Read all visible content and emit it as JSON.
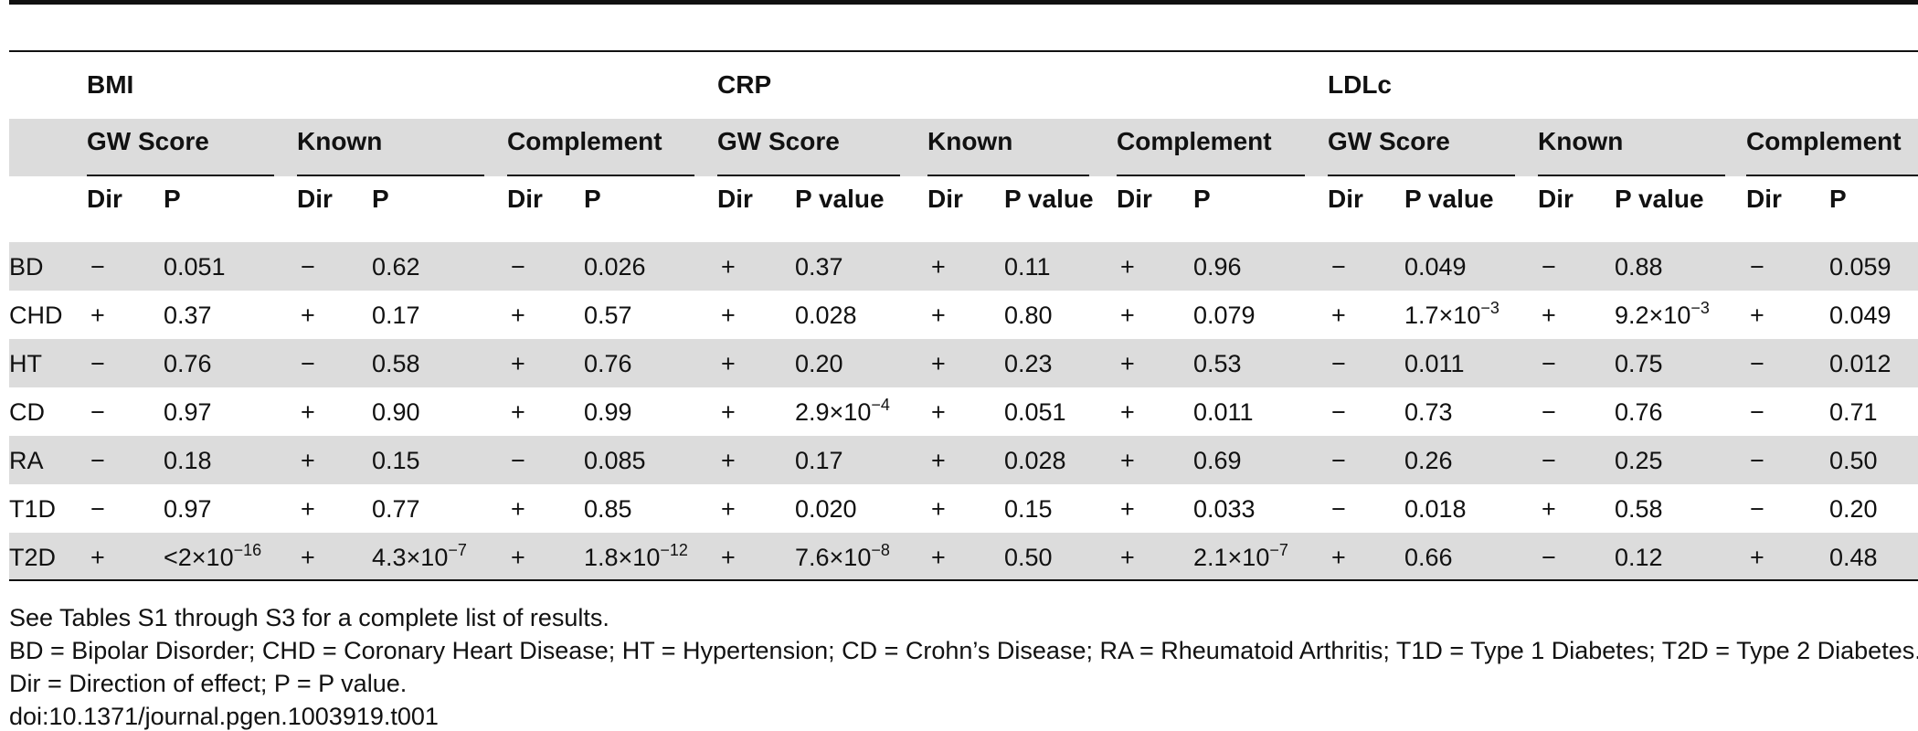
{
  "groups": [
    {
      "label": "BMI",
      "subgroups": [
        {
          "label": "GW Score",
          "cols": [
            "Dir",
            "P"
          ]
        },
        {
          "label": "Known",
          "cols": [
            "Dir",
            "P"
          ]
        },
        {
          "label": "Complement",
          "cols": [
            "Dir",
            "P"
          ]
        }
      ]
    },
    {
      "label": "CRP",
      "subgroups": [
        {
          "label": "GW Score",
          "cols": [
            "Dir",
            "P value"
          ]
        },
        {
          "label": "Known",
          "cols": [
            "Dir",
            "P value"
          ]
        },
        {
          "label": "Complement",
          "cols": [
            "Dir",
            "P"
          ]
        }
      ]
    },
    {
      "label": "LDLc",
      "subgroups": [
        {
          "label": "GW Score",
          "cols": [
            "Dir",
            "P value"
          ]
        },
        {
          "label": "Known",
          "cols": [
            "Dir",
            "P value"
          ]
        },
        {
          "label": "Complement",
          "cols": [
            "Dir",
            "P"
          ]
        }
      ]
    }
  ],
  "rows": [
    {
      "label": "BD",
      "cells": [
        [
          "−",
          "0.051"
        ],
        [
          "−",
          "0.62"
        ],
        [
          "−",
          "0.026"
        ],
        [
          "+",
          "0.37"
        ],
        [
          "+",
          "0.11"
        ],
        [
          "+",
          "0.96"
        ],
        [
          "−",
          "0.049"
        ],
        [
          "−",
          "0.88"
        ],
        [
          "−",
          "0.059"
        ]
      ]
    },
    {
      "label": "CHD",
      "cells": [
        [
          "+",
          "0.37"
        ],
        [
          "+",
          "0.17"
        ],
        [
          "+",
          "0.57"
        ],
        [
          "+",
          "0.028"
        ],
        [
          "+",
          "0.80"
        ],
        [
          "+",
          "0.079"
        ],
        [
          "+",
          "1.7×10",
          "−3"
        ],
        [
          "+",
          "9.2×10",
          "−3"
        ],
        [
          "+",
          "0.049"
        ]
      ]
    },
    {
      "label": "HT",
      "cells": [
        [
          "−",
          "0.76"
        ],
        [
          "−",
          "0.58"
        ],
        [
          "+",
          "0.76"
        ],
        [
          "+",
          "0.20"
        ],
        [
          "+",
          "0.23"
        ],
        [
          "+",
          "0.53"
        ],
        [
          "−",
          "0.011"
        ],
        [
          "−",
          "0.75"
        ],
        [
          "−",
          "0.012"
        ]
      ]
    },
    {
      "label": "CD",
      "cells": [
        [
          "−",
          "0.97"
        ],
        [
          "+",
          "0.90"
        ],
        [
          "+",
          "0.99"
        ],
        [
          "+",
          "2.9×10",
          "−4"
        ],
        [
          "+",
          "0.051"
        ],
        [
          "+",
          "0.011"
        ],
        [
          "−",
          "0.73"
        ],
        [
          "−",
          "0.76"
        ],
        [
          "−",
          "0.71"
        ]
      ]
    },
    {
      "label": "RA",
      "cells": [
        [
          "−",
          "0.18"
        ],
        [
          "+",
          "0.15"
        ],
        [
          "−",
          "0.085"
        ],
        [
          "+",
          "0.17"
        ],
        [
          "+",
          "0.028"
        ],
        [
          "+",
          "0.69"
        ],
        [
          "−",
          "0.26"
        ],
        [
          "−",
          "0.25"
        ],
        [
          "−",
          "0.50"
        ]
      ]
    },
    {
      "label": "T1D",
      "cells": [
        [
          "−",
          "0.97"
        ],
        [
          "+",
          "0.77"
        ],
        [
          "+",
          "0.85"
        ],
        [
          "+",
          "0.020"
        ],
        [
          "+",
          "0.15"
        ],
        [
          "+",
          "0.033"
        ],
        [
          "−",
          "0.018"
        ],
        [
          "+",
          "0.58"
        ],
        [
          "−",
          "0.20"
        ]
      ]
    },
    {
      "label": "T2D",
      "cells": [
        [
          "+",
          "<2×10",
          "−16"
        ],
        [
          "+",
          "4.3×10",
          "−7"
        ],
        [
          "+",
          "1.8×10",
          "−12"
        ],
        [
          "+",
          "7.6×10",
          "−8"
        ],
        [
          "+",
          "0.50"
        ],
        [
          "+",
          "2.1×10",
          "−7"
        ],
        [
          "+",
          "0.66"
        ],
        [
          "−",
          "0.12"
        ],
        [
          "+",
          "0.48"
        ]
      ]
    }
  ],
  "footnotes": [
    "See Tables S1 through S3 for a complete list of results.",
    "BD = Bipolar Disorder; CHD = Coronary Heart Disease; HT = Hypertension; CD = Crohn’s Disease; RA = Rheumatoid Arthritis; T1D = Type 1 Diabetes; T2D = Type 2 Diabetes.",
    "Dir = Direction of effect; P = P value.",
    "doi:10.1371/journal.pgen.1003919.t001"
  ],
  "colors": {
    "band": "#dcdcdc",
    "rule": "#111111"
  }
}
